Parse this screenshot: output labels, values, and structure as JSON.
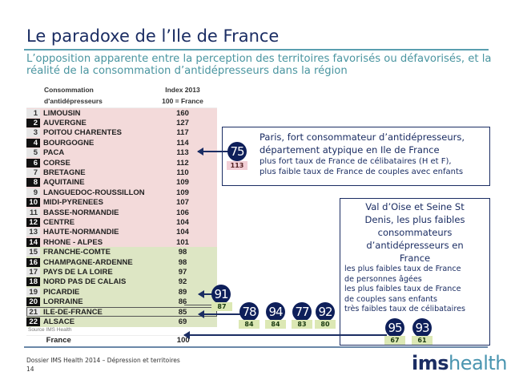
{
  "title": "Le paradoxe de l’Ile de France",
  "subtitle": "L’opposition apparente entre la perception des territoires favorisés ou défavorisés, et la réalité de la consommation d’antidépresseurs dans la région",
  "table": {
    "col1_line1": "Consommation",
    "col1_line2": "d'antidépresseurs",
    "col2_line1": "Index  2013",
    "col2_line2": "100 = France",
    "rows": [
      {
        "rank": "1",
        "name": "LIMOUSIN",
        "index": "160"
      },
      {
        "rank": "2",
        "name": "AUVERGNE",
        "index": "127"
      },
      {
        "rank": "3",
        "name": "POITOU CHARENTES",
        "index": "117"
      },
      {
        "rank": "4",
        "name": "BOURGOGNE",
        "index": "114"
      },
      {
        "rank": "5",
        "name": "PACA",
        "index": "113"
      },
      {
        "rank": "6",
        "name": "CORSE",
        "index": "112"
      },
      {
        "rank": "7",
        "name": "BRETAGNE",
        "index": "110"
      },
      {
        "rank": "8",
        "name": "AQUITAINE",
        "index": "109"
      },
      {
        "rank": "9",
        "name": "LANGUEDOC-ROUSSILLON",
        "index": "109"
      },
      {
        "rank": "10",
        "name": "MIDI-PYRENEES",
        "index": "107"
      },
      {
        "rank": "11",
        "name": "BASSE-NORMANDIE",
        "index": "106"
      },
      {
        "rank": "12",
        "name": "CENTRE",
        "index": "104"
      },
      {
        "rank": "13",
        "name": "HAUTE-NORMANDIE",
        "index": "104"
      },
      {
        "rank": "14",
        "name": "RHONE - ALPES",
        "index": "101"
      },
      {
        "rank": "15",
        "name": "FRANCHE-COMTE",
        "index": "98"
      },
      {
        "rank": "16",
        "name": "CHAMPAGNE-ARDENNE",
        "index": "98"
      },
      {
        "rank": "17",
        "name": "PAYS DE LA LOIRE",
        "index": "97"
      },
      {
        "rank": "18",
        "name": "NORD PAS DE CALAIS",
        "index": "92"
      },
      {
        "rank": "19",
        "name": "PICARDIE",
        "index": "89"
      },
      {
        "rank": "20",
        "name": "LORRAINE",
        "index": "86"
      },
      {
        "rank": "21",
        "name": "ILE-DE-FRANCE",
        "index": "85"
      },
      {
        "rank": "22",
        "name": "ALSACE",
        "index": "69"
      }
    ],
    "source": "Source IMS Health",
    "total_name": "France",
    "total_index": "100"
  },
  "paris": {
    "dept": "75",
    "index": "113",
    "line1": "Paris, fort consommateur d’antidépresseurs,",
    "line2": "département atypique en Ile de France",
    "line3": "plus fort taux de France de célibataires (H et F),",
    "line4": "plus faible taux de France de couples avec enfants"
  },
  "depts": [
    {
      "dept": "91",
      "index": "87"
    },
    {
      "dept": "78",
      "index": "84"
    },
    {
      "dept": "94",
      "index": "84"
    },
    {
      "dept": "77",
      "index": "83"
    },
    {
      "dept": "92",
      "index": "80"
    },
    {
      "dept": "95",
      "index": "67"
    },
    {
      "dept": "93",
      "index": "61"
    }
  ],
  "valdoise": {
    "head1": "Val d’Oise et Seine St",
    "head2": "Denis, les plus faibles",
    "head3": "consommateurs",
    "head4": "d’antidépresseurs en",
    "head5": "France",
    "l1": "les plus faibles taux de France",
    "l2": "de personnes âgées",
    "l3": "les plus faibles taux de France",
    "l4": "de couples sans enfants",
    "l5": "très faibles taux de célibataires"
  },
  "footer": {
    "line1": "Dossier IMS Health 2014 – Dépression et territoires",
    "page": "14"
  },
  "logo": {
    "bold": "ims",
    "light": "health"
  },
  "colors": {
    "navy": "#1b2d63",
    "teal": "#4a95a0",
    "pink": "#f3dada",
    "green": "#dde6c4"
  }
}
